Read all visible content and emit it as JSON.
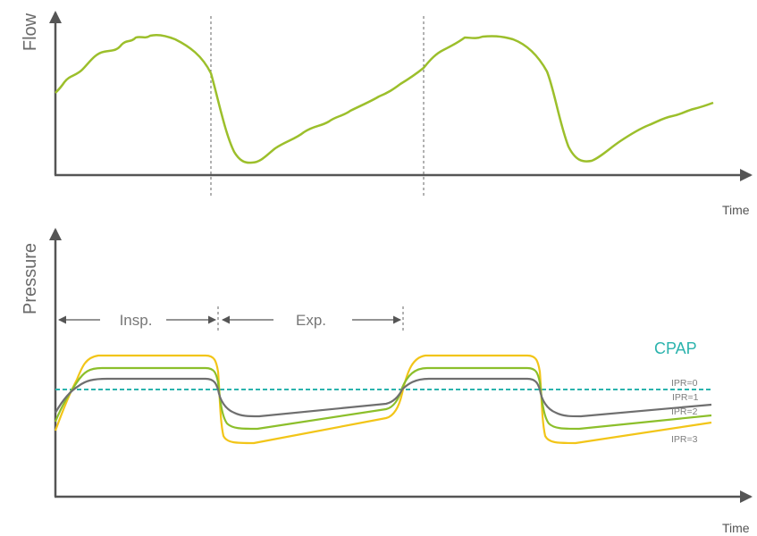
{
  "flow_panel": {
    "y_label": "Flow",
    "x_label": "Time",
    "colors": {
      "curve": "#9cbf2b",
      "axis": "#555555",
      "divider": "#666666"
    }
  },
  "pressure_panel": {
    "y_label": "Pressure",
    "x_label": "Time",
    "phases": {
      "inspiration": "Insp.",
      "expiration": "Exp."
    },
    "baseline": {
      "label": "CPAP",
      "color": "#2bb3ad"
    },
    "series": [
      {
        "name": "IPR=0",
        "color": "#6f6f6f"
      },
      {
        "name": "IPR=1",
        "color": "#6f6f6f"
      },
      {
        "name": "IPR=2",
        "color": "#8cbf2b"
      },
      {
        "name": "IPR=3",
        "color": "#f2c518"
      }
    ]
  }
}
